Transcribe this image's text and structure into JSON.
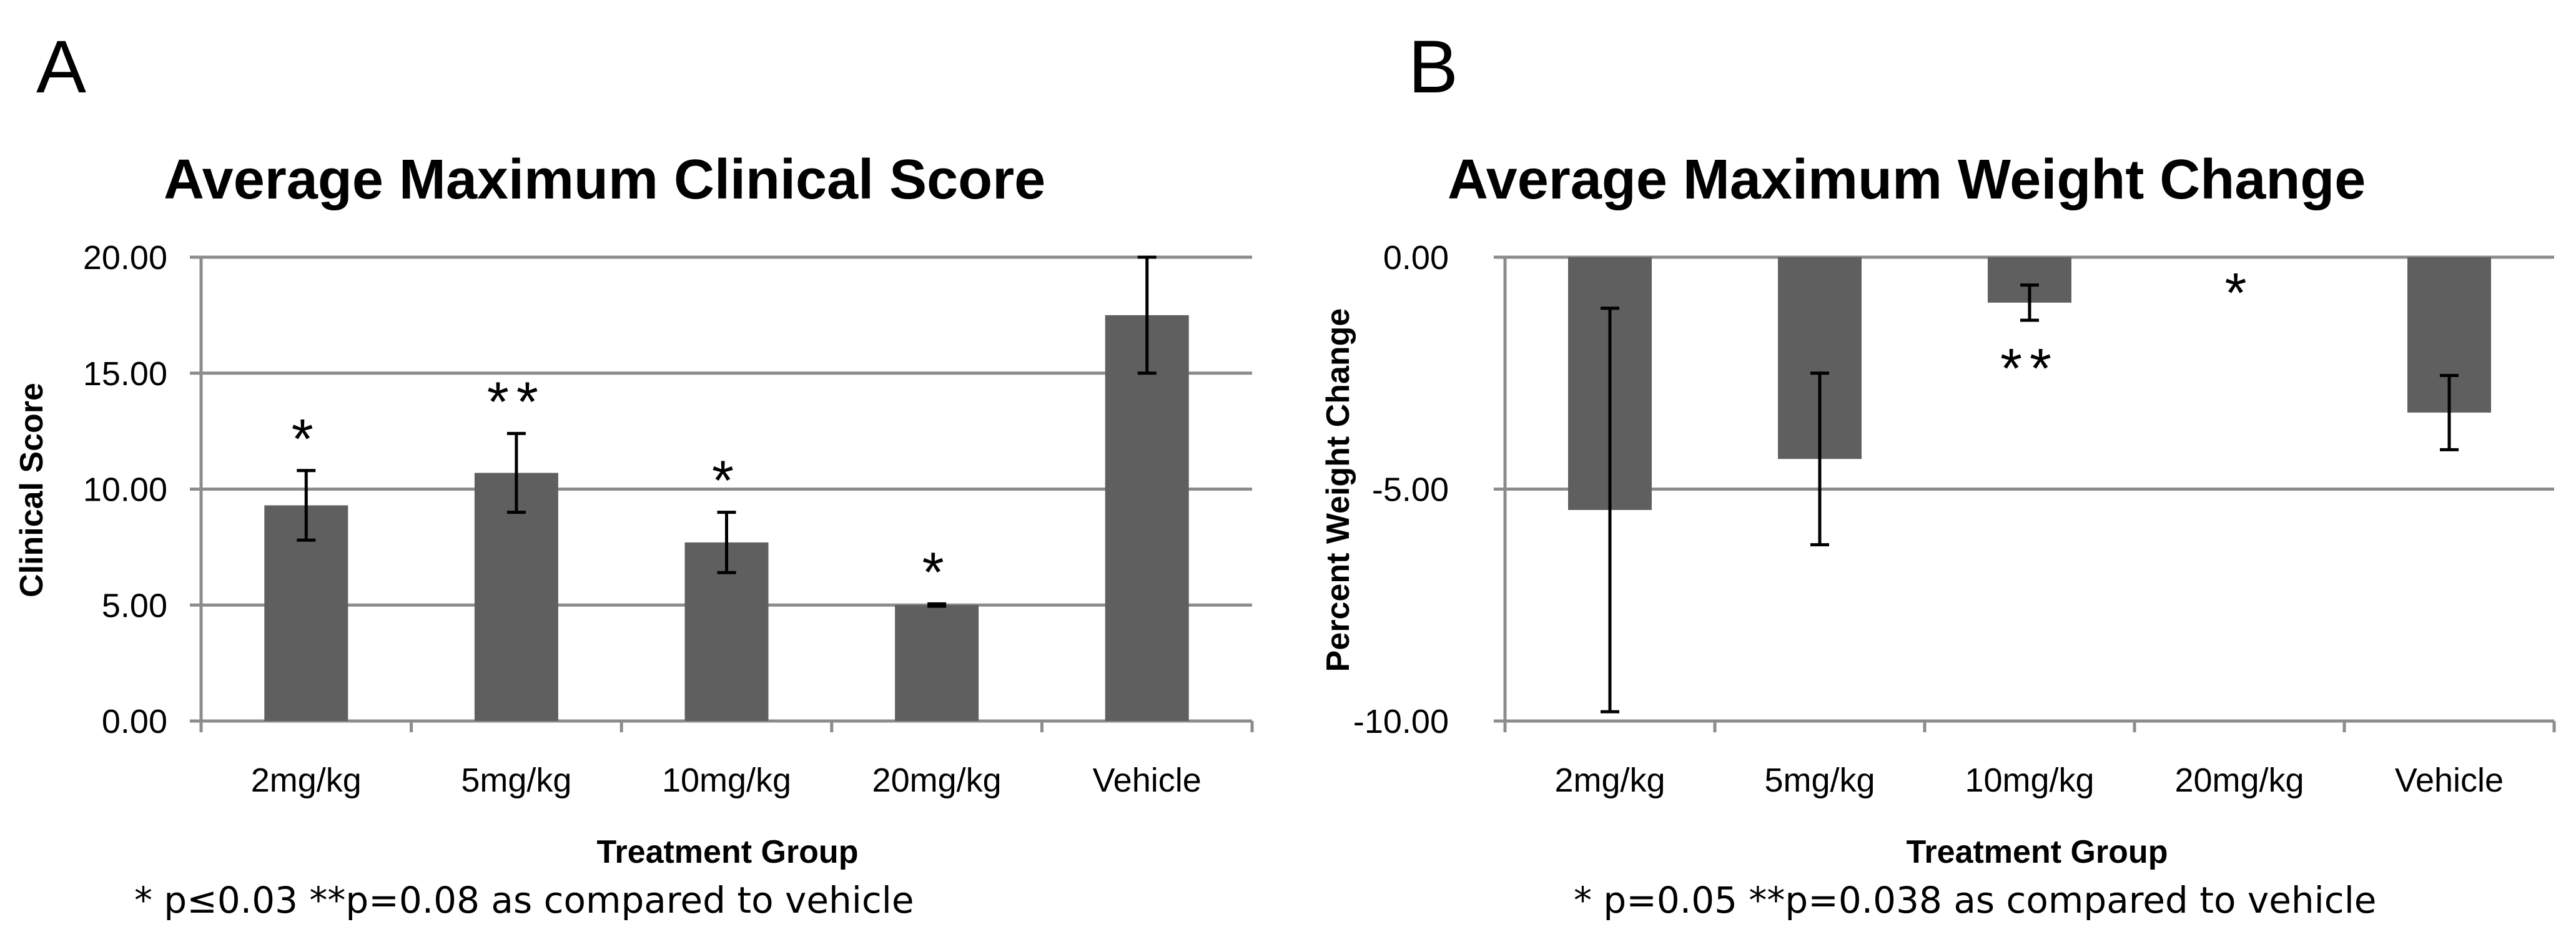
{
  "chart_data": [
    {
      "type": "bar",
      "panel": "A",
      "title": "Average Maximum Clinical Score",
      "xlabel": "Treatment Group",
      "ylabel": "Clinical Score",
      "ylim": [
        0,
        20
      ],
      "yticks": [
        "0.00",
        "5.00",
        "10.00",
        "15.00",
        "20.00"
      ],
      "grid": true,
      "bar_color": "#5f5f5f",
      "categories": [
        "2mg/kg",
        "5mg/kg",
        "10mg/kg",
        "20mg/kg",
        "Vehicle"
      ],
      "values": [
        9.3,
        10.7,
        7.7,
        5.0,
        17.5
      ],
      "error": [
        1.5,
        1.7,
        1.3,
        0.05,
        2.5
      ],
      "annotations": [
        "*",
        "**",
        "*",
        "*",
        ""
      ],
      "footnote": "* p≤0.03   **p=0.08 as compared to vehicle"
    },
    {
      "type": "bar",
      "panel": "B",
      "title": "Average Maximum Weight Change",
      "xlabel": "Treatment Group",
      "ylabel": "Percent Weight Change",
      "ylim": [
        -10,
        0
      ],
      "yticks": [
        "-10.00",
        "-5.00",
        "0.00"
      ],
      "grid": true,
      "bar_color": "#5f5f5f",
      "categories": [
        "2mg/kg",
        "5mg/kg",
        "10mg/kg",
        "20mg/kg",
        "Vehicle"
      ],
      "values": [
        -5.45,
        -4.35,
        -0.98,
        0,
        -3.35
      ],
      "error": [
        4.35,
        1.85,
        0.38,
        0,
        0.8
      ],
      "annotations": [
        "",
        "",
        "**",
        "*",
        ""
      ],
      "footnote": "* p=0.05    **p=0.038 as compared to vehicle"
    }
  ]
}
